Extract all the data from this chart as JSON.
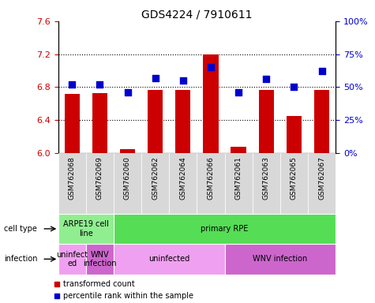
{
  "title": "GDS4224 / 7910611",
  "samples": [
    "GSM762068",
    "GSM762069",
    "GSM762060",
    "GSM762062",
    "GSM762064",
    "GSM762066",
    "GSM762061",
    "GSM762063",
    "GSM762065",
    "GSM762067"
  ],
  "transformed_count": [
    6.72,
    6.73,
    6.05,
    6.77,
    6.77,
    7.2,
    6.08,
    6.77,
    6.45,
    6.77
  ],
  "percentile_rank": [
    52,
    52,
    46,
    57,
    55,
    65,
    46,
    56,
    50,
    62
  ],
  "ylim_left": [
    6.0,
    7.6
  ],
  "ylim_right": [
    0,
    100
  ],
  "yticks_left": [
    6.0,
    6.4,
    6.8,
    7.2,
    7.6
  ],
  "yticks_right": [
    0,
    25,
    50,
    75,
    100
  ],
  "ytick_labels_right": [
    "0%",
    "25%",
    "50%",
    "75%",
    "100%"
  ],
  "hlines": [
    6.4,
    6.8,
    7.2
  ],
  "bar_color": "#cc0000",
  "dot_color": "#0000cc",
  "xticklabel_bg": "#d8d8d8",
  "cell_type_groups": [
    {
      "label": "ARPE19 cell\nline",
      "start": 0,
      "end": 2,
      "color": "#90ee90"
    },
    {
      "label": "primary RPE",
      "start": 2,
      "end": 10,
      "color": "#55dd55"
    }
  ],
  "infection_groups": [
    {
      "label": "uninfect\ned",
      "start": 0,
      "end": 1,
      "color": "#f0a0f0"
    },
    {
      "label": "WNV\ninfection",
      "start": 1,
      "end": 2,
      "color": "#cc66cc"
    },
    {
      "label": "uninfected",
      "start": 2,
      "end": 6,
      "color": "#f0a0f0"
    },
    {
      "label": "WNV infection",
      "start": 6,
      "end": 10,
      "color": "#cc66cc"
    }
  ],
  "left_label_cell_type": "cell type",
  "left_label_infection": "infection",
  "legend_transformed": "transformed count",
  "legend_percentile": "percentile rank within the sample",
  "tick_label_color_left": "#cc0000",
  "tick_label_color_right": "#0000cc",
  "bar_width": 0.55,
  "dot_size": 30,
  "title_fontsize": 10,
  "tick_fontsize": 8,
  "sample_fontsize": 6.5,
  "annot_fontsize": 7.0,
  "legend_fontsize": 7.0
}
